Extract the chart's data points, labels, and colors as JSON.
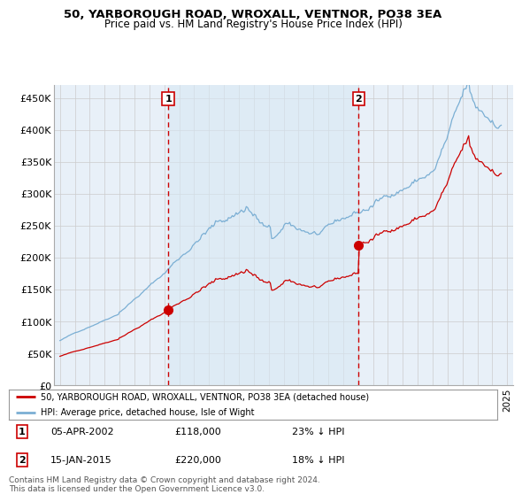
{
  "title": "50, YARBOROUGH ROAD, WROXALL, VENTNOR, PO38 3EA",
  "subtitle": "Price paid vs. HM Land Registry's House Price Index (HPI)",
  "ylabel_ticks": [
    "£0",
    "£50K",
    "£100K",
    "£150K",
    "£200K",
    "£250K",
    "£300K",
    "£350K",
    "£400K",
    "£450K"
  ],
  "ytick_values": [
    0,
    50000,
    100000,
    150000,
    200000,
    250000,
    300000,
    350000,
    400000,
    450000
  ],
  "ylim": [
    0,
    470000
  ],
  "sale1_x": 2002.26,
  "sale1_y": 118000,
  "sale2_x": 2015.04,
  "sale2_y": 220000,
  "legend_line1": "50, YARBOROUGH ROAD, WROXALL, VENTNOR, PO38 3EA (detached house)",
  "legend_line2": "HPI: Average price, detached house, Isle of Wight",
  "ann1_date": "05-APR-2002",
  "ann1_price": "£118,000",
  "ann1_hpi": "23% ↓ HPI",
  "ann2_date": "15-JAN-2015",
  "ann2_price": "£220,000",
  "ann2_hpi": "18% ↓ HPI",
  "footer": "Contains HM Land Registry data © Crown copyright and database right 2024.\nThis data is licensed under the Open Government Licence v3.0.",
  "hpi_color": "#7bafd4",
  "price_color": "#cc0000",
  "shade_color": "#d8e8f3",
  "vline_color": "#cc0000",
  "grid_color": "#cccccc",
  "plot_bg_color": "#e8f0f8",
  "xlim_left": 1994.6,
  "xlim_right": 2025.4
}
